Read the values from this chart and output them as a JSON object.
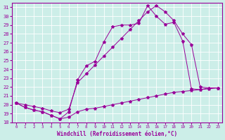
{
  "title": "",
  "xlabel": "Windchill (Refroidissement éolien,°C)",
  "ylabel": "",
  "bg_color": "#cceee8",
  "line_color": "#990099",
  "xlim": [
    -0.5,
    23.5
  ],
  "ylim": [
    18,
    31.5
  ],
  "xticks": [
    0,
    1,
    2,
    3,
    4,
    5,
    6,
    7,
    8,
    9,
    10,
    11,
    12,
    13,
    14,
    15,
    16,
    17,
    18,
    19,
    20,
    21,
    22,
    23
  ],
  "yticks": [
    18,
    19,
    20,
    21,
    22,
    23,
    24,
    25,
    26,
    27,
    28,
    29,
    30,
    31
  ],
  "line1_x": [
    0,
    1,
    2,
    3,
    4,
    5,
    6,
    7,
    8,
    9,
    10,
    11,
    12,
    13,
    14,
    15,
    16,
    17,
    18,
    19,
    20,
    21,
    22,
    23
  ],
  "line1_y": [
    20.2,
    19.7,
    19.4,
    19.2,
    18.8,
    18.4,
    18.6,
    19.2,
    19.5,
    19.6,
    19.8,
    20.0,
    20.2,
    20.4,
    20.6,
    20.8,
    21.0,
    21.2,
    21.4,
    21.5,
    21.6,
    21.7,
    21.8,
    21.9
  ],
  "line2_x": [
    0,
    1,
    2,
    3,
    4,
    5,
    6,
    7,
    8,
    9,
    10,
    11,
    12,
    13,
    14,
    15,
    16,
    17,
    18,
    19,
    20,
    21,
    22,
    23
  ],
  "line2_y": [
    20.2,
    19.7,
    19.4,
    19.2,
    18.8,
    18.4,
    19.2,
    22.8,
    24.4,
    24.9,
    27.1,
    28.8,
    29.0,
    29.0,
    29.2,
    31.2,
    30.0,
    29.1,
    29.3,
    27.2,
    21.8,
    21.7,
    21.9,
    21.9
  ],
  "line3_x": [
    0,
    1,
    2,
    3,
    4,
    5,
    6,
    7,
    8,
    9,
    10,
    11,
    12,
    13,
    14,
    15,
    16,
    17,
    18,
    19,
    20,
    21,
    22,
    23
  ],
  "line3_y": [
    20.2,
    20.0,
    19.8,
    19.6,
    19.3,
    19.1,
    19.5,
    22.5,
    23.5,
    24.5,
    25.5,
    26.5,
    27.5,
    28.5,
    29.5,
    30.5,
    31.2,
    30.5,
    29.5,
    28.0,
    26.8,
    22.0,
    21.9,
    21.9
  ]
}
